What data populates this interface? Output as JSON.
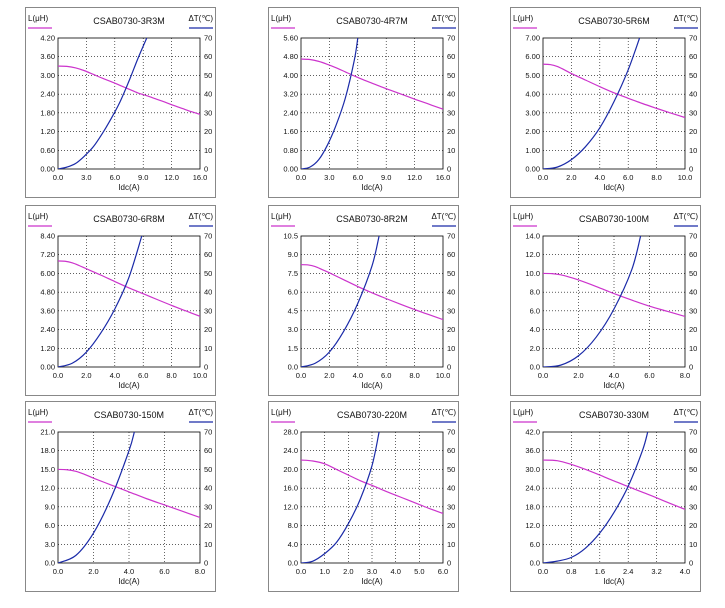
{
  "colors": {
    "inductance": "#cc33cc",
    "temperature": "#1a2aa8",
    "grid": "#000000",
    "frame": "#888888"
  },
  "chart_data": [
    {
      "type": "line",
      "title": "CSAB0730-3R3M",
      "xlabel": "Idc(A)",
      "ylabel": "L(μH)",
      "y2label": "ΔT(℃)",
      "xlim": [
        0,
        16
      ],
      "ylim": [
        0,
        4.2
      ],
      "y2lim": [
        0,
        70
      ],
      "xticks": [
        "0.0",
        "3.0",
        "6.0",
        "9.0",
        "12.0",
        "16.0"
      ],
      "yticks": [
        "0.00",
        "0.60",
        "1.20",
        "1.80",
        "2.40",
        "3.00",
        "3.60",
        "4.20"
      ],
      "y2ticks": [
        "0",
        "10",
        "20",
        "30",
        "40",
        "50",
        "60",
        "70"
      ],
      "series": [
        {
          "name": "L(μH)",
          "axis": "left",
          "x": [
            0,
            1,
            2,
            3,
            4,
            5,
            6,
            7,
            8,
            9,
            10,
            11,
            12,
            13,
            14,
            15,
            16
          ],
          "values": [
            3.3,
            3.29,
            3.24,
            3.15,
            3.03,
            2.91,
            2.8,
            2.68,
            2.56,
            2.44,
            2.35,
            2.25,
            2.15,
            2.04,
            1.94,
            1.84,
            1.75
          ]
        },
        {
          "name": "ΔT(℃)",
          "axis": "right",
          "x": [
            0,
            1,
            2,
            3,
            4,
            5,
            6,
            7,
            8,
            9,
            10
          ],
          "values": [
            0,
            1,
            3,
            7,
            12,
            19,
            27,
            36,
            47,
            59,
            70
          ]
        }
      ]
    },
    {
      "type": "line",
      "title": "CSAB0730-4R7M",
      "xlabel": "Idc(A)",
      "ylabel": "L(μH)",
      "y2label": "ΔT(℃)",
      "xlim": [
        0,
        16
      ],
      "ylim": [
        0,
        5.6
      ],
      "y2lim": [
        0,
        70
      ],
      "xticks": [
        "0.0",
        "3.0",
        "6.0",
        "9.0",
        "12.0",
        "16.0"
      ],
      "yticks": [
        "0.00",
        "0.80",
        "1.60",
        "2.40",
        "3.20",
        "4.00",
        "4.80",
        "5.60"
      ],
      "y2ticks": [
        "0",
        "10",
        "20",
        "30",
        "40",
        "50",
        "60",
        "70"
      ],
      "series": [
        {
          "name": "L(μH)",
          "axis": "left",
          "x": [
            0,
            1,
            2,
            3,
            4,
            5,
            6,
            7,
            8,
            9,
            10,
            11,
            12,
            13,
            14,
            15,
            16
          ],
          "values": [
            4.7,
            4.68,
            4.6,
            4.47,
            4.32,
            4.15,
            3.98,
            3.82,
            3.67,
            3.52,
            3.38,
            3.24,
            3.1,
            2.96,
            2.83,
            2.69,
            2.56
          ]
        },
        {
          "name": "ΔT(℃)",
          "axis": "right",
          "x": [
            0,
            1,
            2,
            3,
            4,
            5,
            6,
            6.4
          ],
          "values": [
            0,
            1,
            5,
            13,
            24,
            38,
            58,
            70
          ]
        }
      ]
    },
    {
      "type": "line",
      "title": "CSAB0730-5R6M",
      "xlabel": "Idc(A)",
      "ylabel": "L(μH)",
      "y2label": "ΔT(℃)",
      "xlim": [
        0,
        10
      ],
      "ylim": [
        0,
        7.0
      ],
      "y2lim": [
        0,
        70
      ],
      "xticks": [
        "0.0",
        "2.0",
        "4.0",
        "6.0",
        "8.0",
        "10.0"
      ],
      "yticks": [
        "0.00",
        "1.00",
        "2.00",
        "3.00",
        "4.00",
        "5.00",
        "6.00",
        "7.00"
      ],
      "y2ticks": [
        "0",
        "10",
        "20",
        "30",
        "40",
        "50",
        "60",
        "70"
      ],
      "series": [
        {
          "name": "L(μH)",
          "axis": "left",
          "x": [
            0,
            0.5,
            1,
            1.5,
            2,
            3,
            4,
            5,
            6,
            7,
            8,
            9,
            10
          ],
          "values": [
            5.6,
            5.58,
            5.48,
            5.3,
            5.1,
            4.75,
            4.4,
            4.07,
            3.78,
            3.5,
            3.24,
            2.99,
            2.75
          ]
        },
        {
          "name": "ΔT(℃)",
          "axis": "right",
          "x": [
            0,
            1,
            2,
            3,
            4,
            5,
            6,
            6.8
          ],
          "values": [
            0,
            1,
            5,
            12,
            22,
            36,
            53,
            70
          ]
        }
      ]
    },
    {
      "type": "line",
      "title": "CSAB0730-6R8M",
      "xlabel": "Idc(A)",
      "ylabel": "L(μH)",
      "y2label": "ΔT(℃)",
      "xlim": [
        0,
        10
      ],
      "ylim": [
        0,
        8.4
      ],
      "y2lim": [
        0,
        70
      ],
      "xticks": [
        "0.0",
        "2.0",
        "4.0",
        "6.0",
        "8.0",
        "10.0"
      ],
      "yticks": [
        "0.00",
        "1.20",
        "2.40",
        "3.60",
        "4.80",
        "6.00",
        "7.20",
        "8.40"
      ],
      "y2ticks": [
        "0",
        "10",
        "20",
        "30",
        "40",
        "50",
        "60",
        "70"
      ],
      "series": [
        {
          "name": "L(μH)",
          "axis": "left",
          "x": [
            0,
            0.5,
            1,
            1.5,
            2,
            3,
            4,
            5,
            6,
            7,
            8,
            9,
            10
          ],
          "values": [
            6.8,
            6.78,
            6.68,
            6.5,
            6.3,
            5.9,
            5.48,
            5.07,
            4.7,
            4.32,
            3.95,
            3.6,
            3.25
          ]
        },
        {
          "name": "ΔT(℃)",
          "axis": "right",
          "x": [
            0,
            1,
            2,
            3,
            4,
            5,
            5.9
          ],
          "values": [
            0,
            2,
            8,
            18,
            31,
            48,
            70
          ]
        }
      ]
    },
    {
      "type": "line",
      "title": "CSAB0730-8R2M",
      "xlabel": "Idc(A)",
      "ylabel": "L(μH)",
      "y2label": "ΔT(℃)",
      "xlim": [
        0,
        10
      ],
      "ylim": [
        0,
        10.5
      ],
      "y2lim": [
        0,
        70
      ],
      "xticks": [
        "0.0",
        "2.0",
        "4.0",
        "6.0",
        "8.0",
        "10.0"
      ],
      "yticks": [
        "0.0",
        "1.5",
        "3.0",
        "4.5",
        "6.0",
        "7.5",
        "9.0",
        "10.5"
      ],
      "y2ticks": [
        "0",
        "10",
        "20",
        "30",
        "40",
        "50",
        "60",
        "70"
      ],
      "series": [
        {
          "name": "L(μH)",
          "axis": "left",
          "x": [
            0,
            0.5,
            1,
            1.5,
            2,
            3,
            4,
            5,
            6,
            7,
            8,
            9,
            10
          ],
          "values": [
            8.2,
            8.18,
            8.05,
            7.8,
            7.55,
            7.0,
            6.45,
            5.95,
            5.48,
            5.03,
            4.6,
            4.2,
            3.8
          ]
        },
        {
          "name": "ΔT(℃)",
          "axis": "right",
          "x": [
            0,
            1,
            2,
            3,
            4,
            5,
            5.5
          ],
          "values": [
            0,
            2,
            8,
            19,
            34,
            54,
            70
          ]
        }
      ]
    },
    {
      "type": "line",
      "title": "CSAB0730-100M",
      "xlabel": "Idc(A)",
      "ylabel": "L(μH)",
      "y2label": "ΔT(℃)",
      "xlim": [
        0,
        8
      ],
      "ylim": [
        0,
        14.0
      ],
      "y2lim": [
        0,
        70
      ],
      "xticks": [
        "0.0",
        "2.0",
        "4.0",
        "6.0",
        "8.0"
      ],
      "yticks": [
        "0.0",
        "2.0",
        "4.0",
        "6.0",
        "8.0",
        "10.0",
        "12.0",
        "14.0"
      ],
      "y2ticks": [
        "0",
        "10",
        "20",
        "30",
        "40",
        "50",
        "60",
        "70"
      ],
      "series": [
        {
          "name": "L(μH)",
          "axis": "left",
          "x": [
            0,
            0.5,
            1,
            1.5,
            2,
            3,
            4,
            5,
            6,
            7,
            8
          ],
          "values": [
            10.0,
            9.98,
            9.85,
            9.6,
            9.3,
            8.6,
            7.85,
            7.15,
            6.5,
            5.95,
            5.4
          ]
        },
        {
          "name": "ΔT(℃)",
          "axis": "right",
          "x": [
            0,
            1,
            2,
            3,
            4,
            5,
            5.5
          ],
          "values": [
            0,
            1,
            6,
            16,
            31,
            52,
            70
          ]
        }
      ]
    },
    {
      "type": "line",
      "title": "CSAB0730-150M",
      "xlabel": "Idc(A)",
      "ylabel": "L(μH)",
      "y2label": "ΔT(℃)",
      "xlim": [
        0,
        8
      ],
      "ylim": [
        0,
        21.0
      ],
      "y2lim": [
        0,
        70
      ],
      "xticks": [
        "0.0",
        "2.0",
        "4.0",
        "6.0",
        "8.0"
      ],
      "yticks": [
        "0.0",
        "3.0",
        "6.0",
        "9.0",
        "12.0",
        "15.0",
        "18.0",
        "21.0"
      ],
      "y2ticks": [
        "0",
        "10",
        "20",
        "30",
        "40",
        "50",
        "60",
        "70"
      ],
      "series": [
        {
          "name": "L(μH)",
          "axis": "left",
          "x": [
            0,
            0.5,
            1,
            1.5,
            2,
            3,
            4,
            5,
            6,
            7,
            8
          ],
          "values": [
            15.0,
            14.95,
            14.7,
            14.2,
            13.6,
            12.5,
            11.4,
            10.3,
            9.3,
            8.3,
            7.3
          ]
        },
        {
          "name": "ΔT(℃)",
          "axis": "right",
          "x": [
            0,
            1,
            2,
            3,
            4,
            4.3
          ],
          "values": [
            0,
            4,
            16,
            35,
            60,
            70
          ]
        }
      ]
    },
    {
      "type": "line",
      "title": "CSAB0730-220M",
      "xlabel": "Idc(A)",
      "ylabel": "L(μH)",
      "y2label": "ΔT(℃)",
      "xlim": [
        0,
        6
      ],
      "ylim": [
        0,
        28.0
      ],
      "y2lim": [
        0,
        70
      ],
      "xticks": [
        "0.0",
        "1.0",
        "2.0",
        "3.0",
        "4.0",
        "5.0",
        "6.0"
      ],
      "yticks": [
        "0.0",
        "4.0",
        "8.0",
        "12.0",
        "16.0",
        "20.0",
        "24.0",
        "28.0"
      ],
      "y2ticks": [
        "0",
        "10",
        "20",
        "30",
        "40",
        "50",
        "60",
        "70"
      ],
      "series": [
        {
          "name": "L(μH)",
          "axis": "left",
          "x": [
            0,
            0.5,
            1,
            1.5,
            2,
            2.5,
            3,
            3.5,
            4,
            4.5,
            5,
            5.5,
            6
          ],
          "values": [
            22.0,
            21.8,
            21.2,
            20.0,
            18.8,
            17.6,
            16.6,
            15.5,
            14.5,
            13.5,
            12.5,
            11.5,
            10.6
          ]
        },
        {
          "name": "ΔT(℃)",
          "axis": "right",
          "x": [
            0,
            0.5,
            1,
            1.5,
            2,
            2.5,
            3,
            3.3
          ],
          "values": [
            0,
            1,
            5,
            11,
            21,
            34,
            52,
            70
          ]
        }
      ]
    },
    {
      "type": "line",
      "title": "CSAB0730-330M",
      "xlabel": "Idc(A)",
      "ylabel": "L(μH)",
      "y2label": "ΔT(℃)",
      "xlim": [
        0,
        4
      ],
      "ylim": [
        0,
        42.0
      ],
      "y2lim": [
        0,
        70
      ],
      "xticks": [
        "0.0",
        "0.8",
        "1.6",
        "2.4",
        "3.2",
        "4.0"
      ],
      "yticks": [
        "0.0",
        "6.0",
        "12.0",
        "18.0",
        "24.0",
        "30.0",
        "36.0",
        "42.0"
      ],
      "y2ticks": [
        "0",
        "10",
        "20",
        "30",
        "40",
        "50",
        "60",
        "70"
      ],
      "series": [
        {
          "name": "L(μH)",
          "axis": "left",
          "x": [
            0,
            0.4,
            0.8,
            1.2,
            1.6,
            2.0,
            2.4,
            2.8,
            3.2,
            3.6,
            4.0
          ],
          "values": [
            33.0,
            32.8,
            31.6,
            30.0,
            28.2,
            26.3,
            24.5,
            22.7,
            20.9,
            19.0,
            17.2
          ]
        },
        {
          "name": "ΔT(℃)",
          "axis": "right",
          "x": [
            0,
            0.4,
            0.8,
            1.2,
            1.6,
            2.0,
            2.4,
            2.8,
            2.95
          ],
          "values": [
            0,
            1,
            3,
            8,
            16,
            27,
            41,
            60,
            70
          ]
        }
      ]
    }
  ]
}
